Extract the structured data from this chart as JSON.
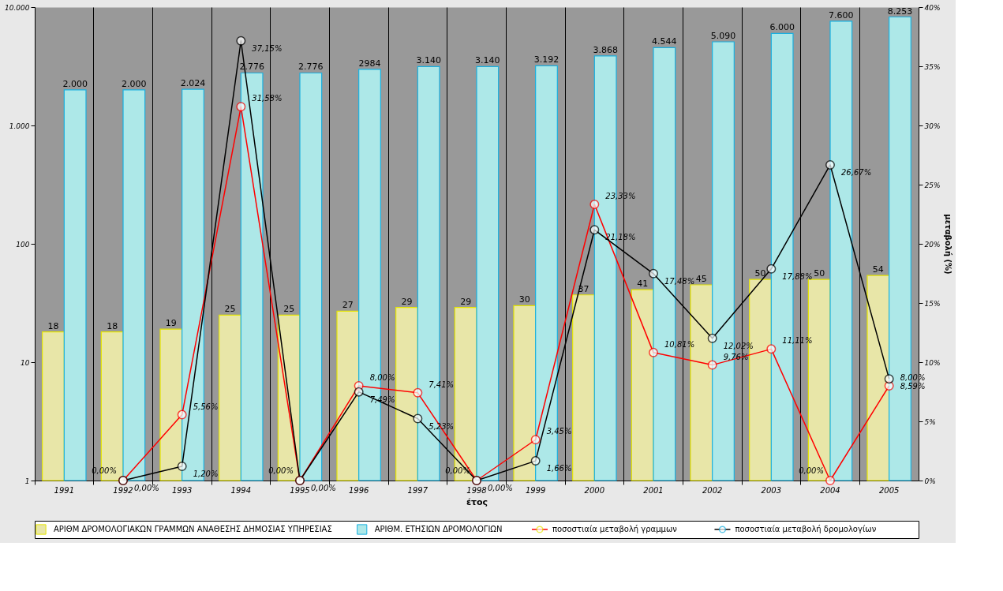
{
  "chart_data": {
    "type": "bar",
    "xlabel": "έτος",
    "y2label": "μεταβολή (%)",
    "categories": [
      "1991",
      "1992",
      "1993",
      "1994",
      "1995",
      "1996",
      "1997",
      "1998",
      "1999",
      "2000",
      "2001",
      "2002",
      "2003",
      "2004",
      "2005"
    ],
    "series": [
      {
        "name": "ΑΡΙΘΜ ΔΡΟΜΟΛΟΓΙΑΚΩΝ ΓΡΑΜΜΩΝ ΑΝΑΘΕΣΗΣ ΔΗΜΟΣΙΑΣ ΥΠΗΡΕΣΙΑΣ",
        "type": "bar",
        "color": "#e8e6a8",
        "values": [
          18,
          18,
          19,
          25,
          25,
          27,
          29,
          29,
          30,
          37,
          41,
          45,
          50,
          50,
          54
        ],
        "value_labels": [
          "18",
          "18",
          "19",
          "25",
          "25",
          "27",
          "29",
          "29",
          "30",
          "37",
          "41",
          "45",
          "50",
          "50",
          "54"
        ]
      },
      {
        "name": "ΑΡΙΘΜ. ΕΤΗΣΙΩΝ ΔΡΟΜΟΛΟΓΙΩΝ",
        "type": "bar",
        "color": "#ade8e8",
        "values": [
          2000,
          2000,
          2024,
          2776,
          2776,
          2984,
          3140,
          3140,
          3192,
          3868,
          4544,
          5090,
          6000,
          7600,
          8253
        ],
        "value_labels": [
          "2.000",
          "2.000",
          "2.024",
          "2.776",
          "2.776",
          "2984",
          "3.140",
          "3.140",
          "3.192",
          "3.868",
          "4.544",
          "5.090",
          "6.000",
          "7.600",
          "8.253"
        ]
      },
      {
        "name": "ποσοστιαία μεταβολή γραμμων",
        "type": "line",
        "axis": "y2",
        "color": "#ff0000",
        "values": [
          null,
          0,
          5.56,
          31.58,
          0,
          8.0,
          7.41,
          0,
          3.45,
          23.33,
          10.81,
          9.76,
          11.11,
          0,
          8.0
        ],
        "value_labels": [
          null,
          "0,00%",
          "5,56%",
          "31,58%",
          "0,00%",
          "8,00%",
          "7,41%",
          "0,00%",
          "3,45%",
          "23,33%",
          "10,81%",
          "9,76%",
          "11,11%",
          "0,00%",
          "8,00%"
        ]
      },
      {
        "name": "ποσοστιαία μεταβολή δρομολογίων",
        "type": "line",
        "axis": "y2",
        "color": "#000000",
        "values": [
          null,
          0,
          1.2,
          37.15,
          0,
          7.49,
          5.23,
          0,
          1.66,
          21.18,
          17.48,
          12.02,
          17.88,
          26.67,
          8.59
        ],
        "value_labels": [
          null,
          "0,00%",
          "1,20%",
          "37,15%",
          "0,00%",
          "7,49%",
          "5,23%",
          "0,00%",
          "1,66%",
          "21,18%",
          "17,48%",
          "12,02%",
          "17,88%",
          "26,67%",
          "8,59%"
        ]
      }
    ],
    "log": "y",
    "ylim": [
      1,
      10000
    ],
    "yticks": [
      1,
      10,
      100,
      {
        "value": 1000,
        "label": "1.000"
      },
      {
        "value": 10000,
        "label": "10.000"
      }
    ],
    "y2lim": [
      0,
      40
    ],
    "y2ticks": [
      {
        "value": 0,
        "label": "0%"
      },
      {
        "value": 5,
        "label": "5%"
      },
      {
        "value": 10,
        "label": "10%"
      },
      {
        "value": 15,
        "label": "15%"
      },
      {
        "value": 20,
        "label": "20%"
      },
      {
        "value": 25,
        "label": "25%"
      },
      {
        "value": 30,
        "label": "30%"
      },
      {
        "value": 35,
        "label": "35%"
      },
      {
        "value": 40,
        "label": "40%"
      }
    ],
    "grid": "x",
    "legend": "bottom",
    "marker": "circle",
    "line_style": "solid"
  }
}
